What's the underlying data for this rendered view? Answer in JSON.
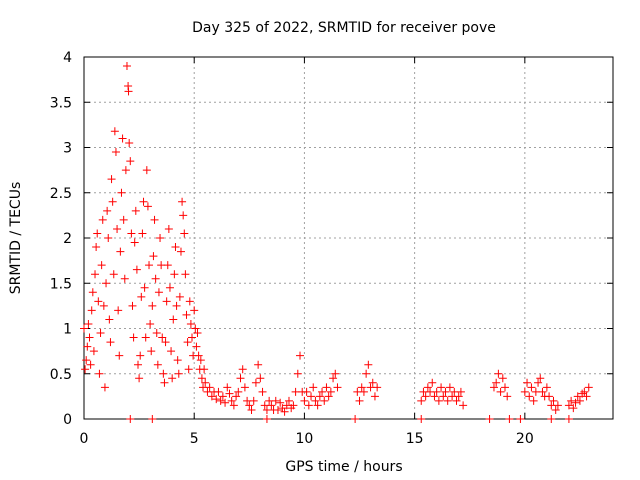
{
  "chart_data": {
    "type": "scatter",
    "title": "Day 325 of 2022, SRMTID for receiver pove",
    "xlabel": "GPS time / hours",
    "ylabel": "SRMTID / TECUs",
    "xlim": [
      0,
      24
    ],
    "ylim": [
      0,
      4
    ],
    "xticks": [
      0,
      5,
      10,
      15,
      20
    ],
    "yticks": [
      0,
      0.5,
      1,
      1.5,
      2,
      2.5,
      3,
      3.5,
      4
    ],
    "xtick_labels": [
      "0",
      "5",
      "10",
      "15",
      "20"
    ],
    "ytick_labels": [
      "0",
      "0.5",
      "1",
      "1.5",
      "2",
      "2.5",
      "3",
      "3.5",
      "4"
    ],
    "grid": true,
    "marker": "+",
    "color": "#ff0000",
    "points": [
      [
        0.0,
        1.0
      ],
      [
        0.05,
        0.55
      ],
      [
        0.1,
        0.65
      ],
      [
        0.15,
        0.8
      ],
      [
        0.2,
        1.05
      ],
      [
        0.25,
        0.9
      ],
      [
        0.3,
        0.6
      ],
      [
        0.35,
        1.2
      ],
      [
        0.4,
        1.4
      ],
      [
        0.45,
        0.75
      ],
      [
        0.5,
        1.6
      ],
      [
        0.55,
        1.9
      ],
      [
        0.6,
        2.05
      ],
      [
        0.65,
        1.3
      ],
      [
        0.7,
        0.5
      ],
      [
        0.75,
        0.95
      ],
      [
        0.8,
        1.7
      ],
      [
        0.85,
        2.2
      ],
      [
        0.9,
        1.25
      ],
      [
        0.95,
        0.35
      ],
      [
        1.0,
        1.5
      ],
      [
        1.05,
        2.3
      ],
      [
        1.1,
        2.0
      ],
      [
        1.15,
        1.1
      ],
      [
        1.2,
        0.85
      ],
      [
        1.25,
        2.65
      ],
      [
        1.3,
        2.4
      ],
      [
        1.35,
        1.6
      ],
      [
        1.4,
        3.18
      ],
      [
        1.45,
        2.95
      ],
      [
        1.5,
        2.1
      ],
      [
        1.55,
        1.2
      ],
      [
        1.6,
        0.7
      ],
      [
        1.65,
        1.85
      ],
      [
        1.7,
        2.5
      ],
      [
        1.75,
        3.1
      ],
      [
        1.8,
        2.2
      ],
      [
        1.85,
        1.55
      ],
      [
        1.9,
        2.75
      ],
      [
        1.95,
        3.9
      ],
      [
        2.0,
        3.68
      ],
      [
        2.02,
        3.62
      ],
      [
        2.05,
        3.05
      ],
      [
        2.1,
        2.85
      ],
      [
        2.15,
        2.05
      ],
      [
        2.2,
        1.25
      ],
      [
        2.25,
        0.9
      ],
      [
        2.3,
        1.95
      ],
      [
        2.35,
        2.3
      ],
      [
        2.4,
        1.65
      ],
      [
        2.45,
        0.6
      ],
      [
        2.5,
        0.45
      ],
      [
        2.55,
        0.7
      ],
      [
        2.6,
        1.35
      ],
      [
        2.65,
        2.05
      ],
      [
        2.7,
        2.4
      ],
      [
        2.75,
        1.45
      ],
      [
        2.8,
        0.9
      ],
      [
        2.85,
        2.75
      ],
      [
        2.9,
        2.35
      ],
      [
        2.95,
        1.7
      ],
      [
        3.0,
        1.05
      ],
      [
        3.05,
        0.75
      ],
      [
        3.1,
        1.25
      ],
      [
        3.15,
        1.8
      ],
      [
        3.2,
        2.2
      ],
      [
        3.25,
        1.55
      ],
      [
        3.3,
        0.95
      ],
      [
        3.35,
        0.6
      ],
      [
        3.4,
        1.4
      ],
      [
        3.45,
        2.0
      ],
      [
        3.5,
        1.7
      ],
      [
        3.55,
        0.9
      ],
      [
        3.6,
        0.5
      ],
      [
        3.65,
        0.4
      ],
      [
        3.7,
        0.85
      ],
      [
        3.75,
        1.3
      ],
      [
        3.8,
        1.7
      ],
      [
        3.85,
        2.1
      ],
      [
        3.9,
        1.45
      ],
      [
        3.95,
        0.75
      ],
      [
        4.0,
        0.45
      ],
      [
        4.05,
        1.1
      ],
      [
        4.1,
        1.6
      ],
      [
        4.15,
        1.9
      ],
      [
        4.2,
        1.25
      ],
      [
        4.25,
        0.65
      ],
      [
        4.3,
        0.5
      ],
      [
        4.35,
        1.35
      ],
      [
        4.4,
        1.85
      ],
      [
        4.45,
        2.4
      ],
      [
        4.5,
        2.25
      ],
      [
        4.55,
        2.05
      ],
      [
        4.6,
        1.6
      ],
      [
        4.65,
        1.15
      ],
      [
        4.7,
        0.85
      ],
      [
        4.75,
        0.55
      ],
      [
        4.8,
        1.3
      ],
      [
        4.85,
        1.05
      ],
      [
        4.9,
        0.9
      ],
      [
        4.95,
        0.7
      ],
      [
        5.0,
        1.2
      ],
      [
        5.05,
        1.0
      ],
      [
        5.1,
        0.8
      ],
      [
        5.15,
        0.95
      ],
      [
        5.2,
        0.7
      ],
      [
        5.25,
        0.55
      ],
      [
        5.3,
        0.65
      ],
      [
        5.35,
        0.45
      ],
      [
        5.4,
        0.35
      ],
      [
        5.45,
        0.55
      ],
      [
        5.5,
        0.4
      ],
      [
        5.6,
        0.3
      ],
      [
        5.7,
        0.35
      ],
      [
        5.8,
        0.25
      ],
      [
        5.9,
        0.3
      ],
      [
        6.0,
        0.22
      ],
      [
        6.1,
        0.3
      ],
      [
        6.2,
        0.2
      ],
      [
        6.3,
        0.25
      ],
      [
        6.4,
        0.18
      ],
      [
        6.5,
        0.35
      ],
      [
        6.6,
        0.28
      ],
      [
        6.7,
        0.2
      ],
      [
        6.8,
        0.15
      ],
      [
        6.9,
        0.25
      ],
      [
        7.0,
        0.3
      ],
      [
        7.1,
        0.45
      ],
      [
        7.2,
        0.55
      ],
      [
        7.3,
        0.35
      ],
      [
        7.4,
        0.2
      ],
      [
        7.5,
        0.15
      ],
      [
        7.6,
        0.1
      ],
      [
        7.7,
        0.2
      ],
      [
        7.8,
        0.4
      ],
      [
        7.9,
        0.6
      ],
      [
        8.0,
        0.45
      ],
      [
        8.1,
        0.3
      ],
      [
        8.2,
        0.15
      ],
      [
        8.3,
        0.1
      ],
      [
        8.4,
        0.2
      ],
      [
        8.5,
        0.15
      ],
      [
        8.6,
        0.1
      ],
      [
        8.7,
        0.2
      ],
      [
        8.8,
        0.1
      ],
      [
        8.9,
        0.18
      ],
      [
        9.0,
        0.12
      ],
      [
        9.1,
        0.08
      ],
      [
        9.2,
        0.15
      ],
      [
        9.3,
        0.2
      ],
      [
        9.4,
        0.12
      ],
      [
        9.5,
        0.15
      ],
      [
        9.6,
        0.3
      ],
      [
        9.7,
        0.5
      ],
      [
        9.8,
        0.7
      ],
      [
        9.9,
        0.3
      ],
      [
        10.0,
        0.2
      ],
      [
        10.1,
        0.3
      ],
      [
        10.2,
        0.15
      ],
      [
        10.3,
        0.25
      ],
      [
        10.4,
        0.35
      ],
      [
        10.5,
        0.2
      ],
      [
        10.6,
        0.15
      ],
      [
        10.7,
        0.25
      ],
      [
        10.8,
        0.3
      ],
      [
        10.9,
        0.2
      ],
      [
        11.0,
        0.35
      ],
      [
        11.1,
        0.25
      ],
      [
        11.2,
        0.3
      ],
      [
        11.3,
        0.45
      ],
      [
        11.4,
        0.5
      ],
      [
        11.5,
        0.35
      ],
      [
        12.4,
        0.3
      ],
      [
        12.5,
        0.2
      ],
      [
        12.6,
        0.35
      ],
      [
        12.7,
        0.3
      ],
      [
        12.8,
        0.5
      ],
      [
        12.9,
        0.6
      ],
      [
        13.0,
        0.35
      ],
      [
        13.1,
        0.4
      ],
      [
        13.2,
        0.25
      ],
      [
        13.3,
        0.35
      ],
      [
        15.3,
        0.2
      ],
      [
        15.4,
        0.3
      ],
      [
        15.5,
        0.25
      ],
      [
        15.6,
        0.35
      ],
      [
        15.7,
        0.3
      ],
      [
        15.8,
        0.4
      ],
      [
        15.9,
        0.25
      ],
      [
        16.0,
        0.3
      ],
      [
        16.1,
        0.2
      ],
      [
        16.2,
        0.35
      ],
      [
        16.3,
        0.25
      ],
      [
        16.4,
        0.3
      ],
      [
        16.5,
        0.2
      ],
      [
        16.6,
        0.35
      ],
      [
        16.7,
        0.25
      ],
      [
        16.8,
        0.3
      ],
      [
        16.9,
        0.2
      ],
      [
        17.0,
        0.25
      ],
      [
        17.1,
        0.3
      ],
      [
        17.2,
        0.15
      ],
      [
        18.6,
        0.35
      ],
      [
        18.7,
        0.4
      ],
      [
        18.8,
        0.5
      ],
      [
        18.9,
        0.3
      ],
      [
        19.0,
        0.45
      ],
      [
        19.1,
        0.35
      ],
      [
        19.2,
        0.25
      ],
      [
        20.0,
        0.3
      ],
      [
        20.1,
        0.4
      ],
      [
        20.2,
        0.25
      ],
      [
        20.3,
        0.35
      ],
      [
        20.4,
        0.2
      ],
      [
        20.5,
        0.3
      ],
      [
        20.6,
        0.4
      ],
      [
        20.7,
        0.45
      ],
      [
        20.8,
        0.3
      ],
      [
        20.9,
        0.25
      ],
      [
        21.0,
        0.35
      ],
      [
        21.1,
        0.25
      ],
      [
        21.2,
        0.15
      ],
      [
        21.3,
        0.2
      ],
      [
        21.4,
        0.1
      ],
      [
        21.5,
        0.15
      ],
      [
        22.0,
        0.15
      ],
      [
        22.1,
        0.2
      ],
      [
        22.2,
        0.12
      ],
      [
        22.3,
        0.18
      ],
      [
        22.4,
        0.25
      ],
      [
        22.5,
        0.2
      ],
      [
        22.6,
        0.28
      ],
      [
        22.7,
        0.3
      ],
      [
        22.8,
        0.25
      ],
      [
        22.9,
        0.35
      ],
      [
        2.1,
        0.0
      ],
      [
        3.1,
        0.0
      ],
      [
        8.3,
        0.0
      ],
      [
        12.3,
        0.0
      ],
      [
        15.3,
        0.0
      ],
      [
        18.4,
        0.0
      ],
      [
        19.3,
        0.0
      ],
      [
        19.8,
        0.0
      ],
      [
        21.2,
        0.0
      ],
      [
        22.0,
        0.0
      ]
    ]
  }
}
